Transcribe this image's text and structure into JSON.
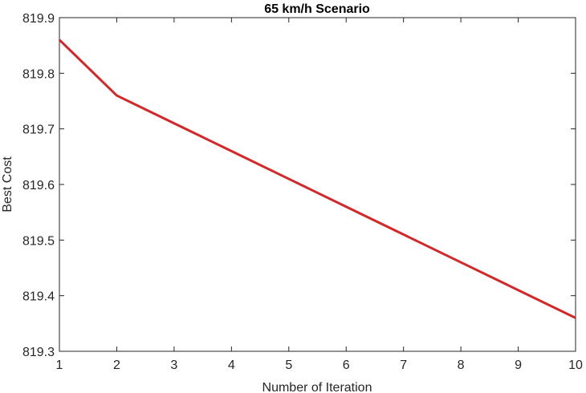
{
  "chart_data": {
    "type": "line",
    "title": "65 km/h Scenario",
    "xlabel": "Number of Iteration",
    "ylabel": "Best Cost",
    "xlim": [
      1,
      10
    ],
    "ylim": [
      819.3,
      819.9
    ],
    "xticks": [
      1,
      2,
      3,
      4,
      5,
      6,
      7,
      8,
      9,
      10
    ],
    "xtick_labels": [
      "1",
      "2",
      "3",
      "4",
      "5",
      "6",
      "7",
      "8",
      "9",
      "10"
    ],
    "yticks": [
      819.3,
      819.4,
      819.5,
      819.6,
      819.7,
      819.8,
      819.9
    ],
    "ytick_labels": [
      "819.3",
      "819.4",
      "819.5",
      "819.6",
      "819.7",
      "819.8",
      "819.9"
    ],
    "grid": false,
    "series": [
      {
        "color": "#d62728",
        "x": [
          1,
          2,
          3,
          4,
          5,
          6,
          7,
          8,
          9,
          10
        ],
        "y": [
          819.86,
          819.76,
          819.71,
          819.66,
          819.61,
          819.56,
          819.51,
          819.46,
          819.41,
          819.36
        ]
      }
    ]
  }
}
